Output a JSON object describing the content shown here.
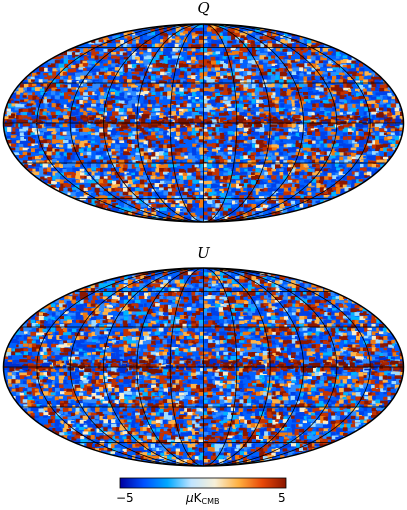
{
  "panels": [
    {
      "title": "Q",
      "band_strength": 0.75,
      "seed": 11
    },
    {
      "title": "U",
      "band_strength": 1.0,
      "seed": 29
    }
  ],
  "colorbar": {
    "min_label": "−5",
    "max_label": "5",
    "unit_prefix": "μ",
    "unit_main": "K",
    "unit_sub": "CMB",
    "colors": [
      "#0000a0",
      "#0050ff",
      "#00a8ff",
      "#bfe4ff",
      "#f7f0d8",
      "#ffb040",
      "#e84808",
      "#8a1600"
    ]
  },
  "projection": "Mollweide",
  "graticule": true
}
